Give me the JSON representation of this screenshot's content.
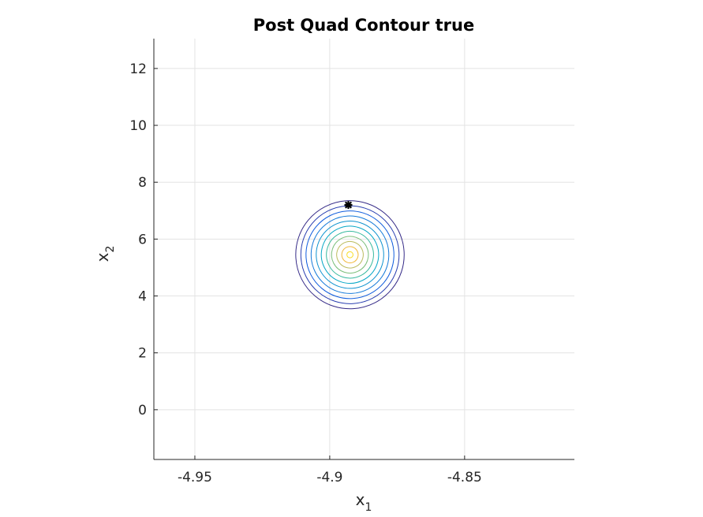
{
  "chart_data": {
    "type": "contour",
    "title": "Post Quad Contour true",
    "xlabel": {
      "base": "x",
      "sub": "1"
    },
    "ylabel": {
      "base": "x",
      "sub": "2"
    },
    "xlim": [
      -4.9652,
      -4.8093
    ],
    "ylim": [
      -1.75,
      13.05
    ],
    "xticks": [
      -4.95,
      -4.9,
      -4.85
    ],
    "xtick_labels": [
      "-4.95",
      "-4.9",
      "-4.85"
    ],
    "yticks": [
      0,
      2,
      4,
      6,
      8,
      10,
      12
    ],
    "ytick_labels": [
      "0",
      "2",
      "4",
      "6",
      "8",
      "10",
      "12"
    ],
    "grid": true,
    "colormap": "parula",
    "contours": {
      "center": [
        -4.8925,
        5.45
      ],
      "outer_half_width_x": 0.0201,
      "outer_half_height_y": 1.9,
      "tilt_deg": 18,
      "levels": 10,
      "colors": [
        "#352a87",
        "#2a3fb0",
        "#0f5cdd",
        "#1479d9",
        "#0e92cf",
        "#06a7c6",
        "#38b99e",
        "#7cbf7b",
        "#bbbc5f",
        "#f1b93a",
        "#f8dd25"
      ]
    },
    "marker": {
      "x": -4.8931,
      "y": 7.2,
      "symbol": "star",
      "color": "#000000"
    }
  }
}
